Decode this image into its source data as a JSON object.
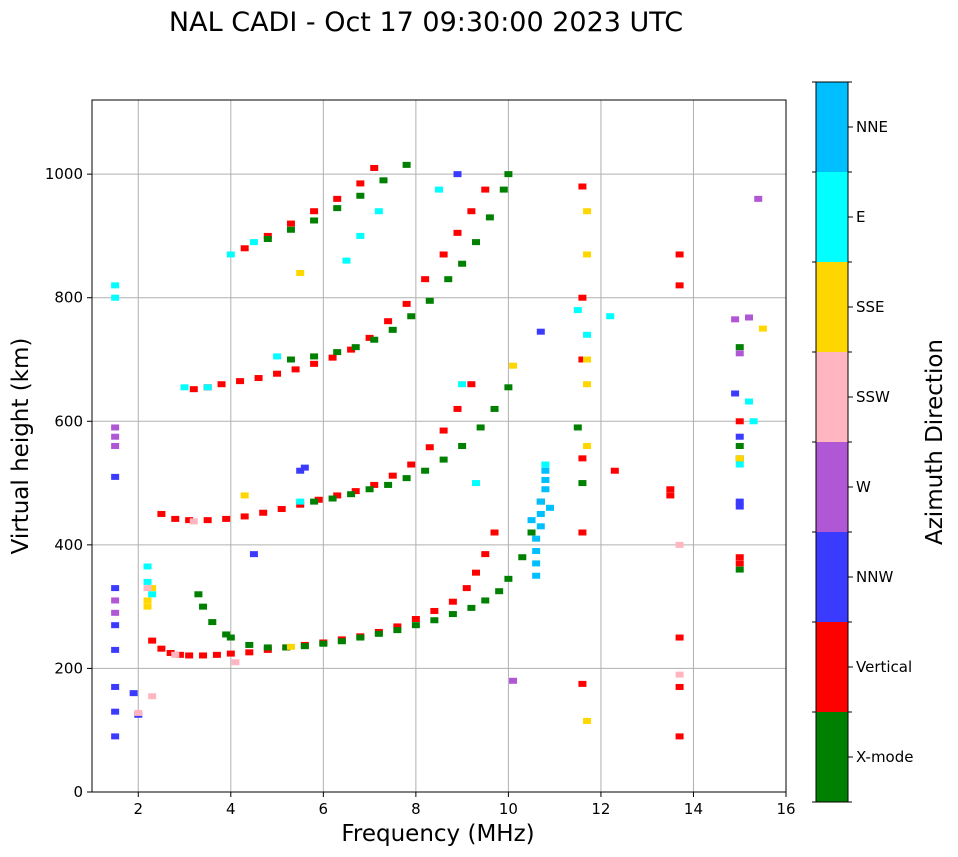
{
  "chart_data": {
    "type": "scatter",
    "title": "NAL CADI - Oct 17 09:30:00 2023 UTC",
    "xlabel": "Frequency (MHz)",
    "ylabel": "Virtual height (km)",
    "xlim": [
      1,
      16
    ],
    "ylim": [
      0,
      1120
    ],
    "xticks": [
      2,
      4,
      6,
      8,
      10,
      12,
      14,
      16
    ],
    "yticks": [
      0,
      200,
      400,
      600,
      800,
      1000
    ],
    "grid": true,
    "colorbar": {
      "label": "Azimuth Direction",
      "categories": [
        {
          "name": "X-mode",
          "color": "#008000"
        },
        {
          "name": "Vertical",
          "color": "#ff0000"
        },
        {
          "name": "NNW",
          "color": "#3b3bff"
        },
        {
          "name": "W",
          "color": "#b057d6"
        },
        {
          "name": "SSW",
          "color": "#ffb6c1"
        },
        {
          "name": "SSE",
          "color": "#ffd700"
        },
        {
          "name": "E",
          "color": "#00ffff"
        },
        {
          "name": "NNE",
          "color": "#00bfff"
        }
      ]
    },
    "series": [
      {
        "name": "Vertical",
        "color": "#ff0000",
        "points": [
          [
            2.3,
            245
          ],
          [
            2.5,
            232
          ],
          [
            2.7,
            225
          ],
          [
            2.9,
            222
          ],
          [
            3.1,
            221
          ],
          [
            3.4,
            221
          ],
          [
            3.7,
            222
          ],
          [
            4.0,
            224
          ],
          [
            4.4,
            226
          ],
          [
            4.8,
            230
          ],
          [
            5.2,
            234
          ],
          [
            5.6,
            238
          ],
          [
            6.0,
            242
          ],
          [
            6.4,
            247
          ],
          [
            6.8,
            252
          ],
          [
            7.2,
            259
          ],
          [
            7.6,
            268
          ],
          [
            8.0,
            280
          ],
          [
            8.4,
            293
          ],
          [
            8.8,
            308
          ],
          [
            9.1,
            330
          ],
          [
            9.3,
            355
          ],
          [
            9.5,
            385
          ],
          [
            9.7,
            420
          ],
          [
            2.5,
            450
          ],
          [
            2.8,
            442
          ],
          [
            3.1,
            440
          ],
          [
            3.5,
            440
          ],
          [
            3.9,
            442
          ],
          [
            4.3,
            446
          ],
          [
            4.7,
            452
          ],
          [
            5.1,
            458
          ],
          [
            5.5,
            465
          ],
          [
            5.9,
            473
          ],
          [
            6.3,
            480
          ],
          [
            6.7,
            487
          ],
          [
            7.1,
            497
          ],
          [
            7.5,
            512
          ],
          [
            7.9,
            530
          ],
          [
            8.3,
            558
          ],
          [
            8.6,
            585
          ],
          [
            8.9,
            620
          ],
          [
            9.2,
            660
          ],
          [
            3.2,
            652
          ],
          [
            3.5,
            655
          ],
          [
            3.8,
            660
          ],
          [
            4.2,
            665
          ],
          [
            4.6,
            670
          ],
          [
            5.0,
            677
          ],
          [
            5.4,
            684
          ],
          [
            5.8,
            693
          ],
          [
            6.2,
            703
          ],
          [
            6.6,
            716
          ],
          [
            7.0,
            735
          ],
          [
            7.4,
            762
          ],
          [
            7.8,
            790
          ],
          [
            8.2,
            830
          ],
          [
            8.6,
            870
          ],
          [
            8.9,
            905
          ],
          [
            9.2,
            940
          ],
          [
            9.5,
            975
          ],
          [
            4.3,
            880
          ],
          [
            4.8,
            900
          ],
          [
            5.3,
            920
          ],
          [
            5.8,
            940
          ],
          [
            6.3,
            960
          ],
          [
            6.8,
            985
          ],
          [
            7.1,
            1010
          ],
          [
            11.6,
            980
          ],
          [
            11.6,
            800
          ],
          [
            11.6,
            700
          ],
          [
            11.6,
            540
          ],
          [
            11.6,
            420
          ],
          [
            11.6,
            175
          ],
          [
            13.5,
            490
          ],
          [
            13.5,
            480
          ],
          [
            13.7,
            870
          ],
          [
            13.7,
            820
          ],
          [
            13.7,
            250
          ],
          [
            13.7,
            170
          ],
          [
            13.7,
            90
          ],
          [
            12.3,
            520
          ],
          [
            15.0,
            600
          ],
          [
            15.0,
            380
          ],
          [
            15.0,
            370
          ]
        ]
      },
      {
        "name": "X-mode",
        "color": "#008000",
        "points": [
          [
            4.0,
            250
          ],
          [
            4.4,
            238
          ],
          [
            4.8,
            234
          ],
          [
            5.2,
            234
          ],
          [
            5.6,
            236
          ],
          [
            6.0,
            240
          ],
          [
            6.4,
            244
          ],
          [
            6.8,
            250
          ],
          [
            7.2,
            256
          ],
          [
            7.6,
            262
          ],
          [
            8.0,
            270
          ],
          [
            8.4,
            278
          ],
          [
            8.8,
            288
          ],
          [
            9.2,
            298
          ],
          [
            9.5,
            310
          ],
          [
            9.8,
            325
          ],
          [
            10.0,
            345
          ],
          [
            10.3,
            380
          ],
          [
            10.5,
            420
          ],
          [
            10.7,
            470
          ],
          [
            5.8,
            470
          ],
          [
            6.2,
            475
          ],
          [
            6.6,
            482
          ],
          [
            7.0,
            490
          ],
          [
            7.4,
            497
          ],
          [
            7.8,
            508
          ],
          [
            8.2,
            520
          ],
          [
            8.6,
            538
          ],
          [
            9.0,
            560
          ],
          [
            9.4,
            590
          ],
          [
            9.7,
            620
          ],
          [
            10.0,
            655
          ],
          [
            5.3,
            700
          ],
          [
            5.8,
            705
          ],
          [
            6.3,
            712
          ],
          [
            6.7,
            720
          ],
          [
            7.1,
            732
          ],
          [
            7.5,
            748
          ],
          [
            7.9,
            770
          ],
          [
            8.3,
            795
          ],
          [
            8.7,
            830
          ],
          [
            9.0,
            855
          ],
          [
            9.3,
            890
          ],
          [
            9.6,
            930
          ],
          [
            9.9,
            975
          ],
          [
            10.0,
            1000
          ],
          [
            4.8,
            895
          ],
          [
            5.3,
            910
          ],
          [
            5.8,
            925
          ],
          [
            6.3,
            945
          ],
          [
            6.8,
            965
          ],
          [
            7.3,
            990
          ],
          [
            7.8,
            1015
          ],
          [
            3.3,
            320
          ],
          [
            3.4,
            300
          ],
          [
            3.6,
            275
          ],
          [
            3.9,
            255
          ],
          [
            15.0,
            720
          ],
          [
            15.0,
            560
          ],
          [
            15.0,
            540
          ],
          [
            15.0,
            360
          ],
          [
            11.5,
            590
          ],
          [
            11.6,
            500
          ]
        ]
      },
      {
        "name": "E",
        "color": "#00ffff",
        "points": [
          [
            1.5,
            820
          ],
          [
            1.5,
            800
          ],
          [
            2.2,
            365
          ],
          [
            2.2,
            340
          ],
          [
            2.3,
            320
          ],
          [
            3.0,
            655
          ],
          [
            3.5,
            655
          ],
          [
            4.0,
            870
          ],
          [
            4.5,
            890
          ],
          [
            5.0,
            705
          ],
          [
            5.5,
            470
          ],
          [
            6.5,
            860
          ],
          [
            6.8,
            900
          ],
          [
            7.2,
            940
          ],
          [
            8.5,
            975
          ],
          [
            9.0,
            660
          ],
          [
            9.3,
            500
          ],
          [
            10.8,
            530
          ],
          [
            11.5,
            780
          ],
          [
            11.7,
            740
          ],
          [
            12.2,
            770
          ],
          [
            15.0,
            530
          ],
          [
            15.2,
            632
          ],
          [
            15.3,
            600
          ]
        ]
      },
      {
        "name": "NNE",
        "color": "#00bfff",
        "points": [
          [
            10.6,
            350
          ],
          [
            10.6,
            370
          ],
          [
            10.6,
            390
          ],
          [
            10.6,
            410
          ],
          [
            10.7,
            430
          ],
          [
            10.7,
            450
          ],
          [
            10.7,
            470
          ],
          [
            10.8,
            490
          ],
          [
            10.8,
            505
          ],
          [
            10.8,
            520
          ],
          [
            10.5,
            440
          ],
          [
            10.9,
            460
          ]
        ]
      },
      {
        "name": "NNW",
        "color": "#3b3bff",
        "points": [
          [
            1.5,
            90
          ],
          [
            1.5,
            130
          ],
          [
            1.5,
            170
          ],
          [
            1.5,
            230
          ],
          [
            1.5,
            270
          ],
          [
            1.5,
            330
          ],
          [
            1.5,
            510
          ],
          [
            2.0,
            125
          ],
          [
            1.9,
            160
          ],
          [
            4.5,
            385
          ],
          [
            5.5,
            520
          ],
          [
            5.6,
            525
          ],
          [
            10.7,
            745
          ],
          [
            14.9,
            645
          ],
          [
            15.0,
            575
          ],
          [
            15.0,
            470
          ],
          [
            15.0,
            462
          ],
          [
            8.9,
            1000
          ]
        ]
      },
      {
        "name": "W",
        "color": "#b057d6",
        "points": [
          [
            1.5,
            560
          ],
          [
            1.5,
            575
          ],
          [
            1.5,
            590
          ],
          [
            1.5,
            310
          ],
          [
            1.5,
            290
          ],
          [
            10.1,
            180
          ],
          [
            15.4,
            960
          ],
          [
            15.2,
            768
          ],
          [
            14.9,
            765
          ],
          [
            15.0,
            710
          ]
        ]
      },
      {
        "name": "SSE",
        "color": "#ffd700",
        "points": [
          [
            2.2,
            300
          ],
          [
            2.2,
            310
          ],
          [
            2.3,
            330
          ],
          [
            4.3,
            480
          ],
          [
            5.5,
            840
          ],
          [
            5.3,
            235
          ],
          [
            10.1,
            690
          ],
          [
            11.7,
            940
          ],
          [
            11.7,
            870
          ],
          [
            11.7,
            700
          ],
          [
            11.7,
            660
          ],
          [
            11.7,
            560
          ],
          [
            11.7,
            115
          ],
          [
            15.5,
            750
          ],
          [
            15.0,
            540
          ]
        ]
      },
      {
        "name": "SSW",
        "color": "#ffb6c1",
        "points": [
          [
            2.2,
            330
          ],
          [
            2.3,
            155
          ],
          [
            2.8,
            222
          ],
          [
            3.2,
            438
          ],
          [
            13.7,
            400
          ],
          [
            13.7,
            190
          ],
          [
            2.0,
            128
          ],
          [
            4.1,
            210
          ]
        ]
      }
    ]
  }
}
